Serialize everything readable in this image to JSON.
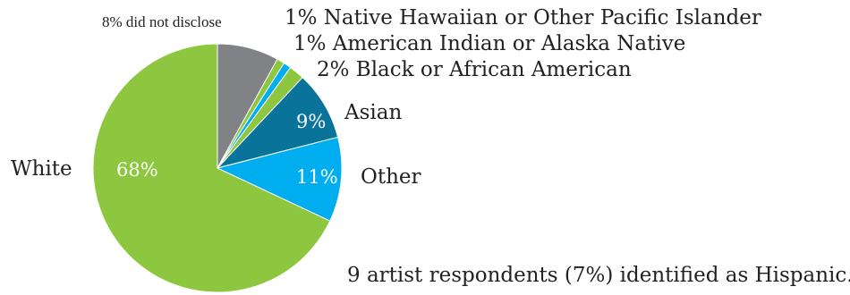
{
  "chart_data": {
    "type": "pie",
    "title": "",
    "slices": [
      {
        "label": "8% did not disclose",
        "value": 8,
        "color": "#808285"
      },
      {
        "label": "1% Native Hawaiian or Other Pacific Islander",
        "value": 1,
        "color": "#8dc63f"
      },
      {
        "label": "1% American Indian or Alaska Native",
        "value": 1,
        "color": "#00aeef"
      },
      {
        "label": "2% Black or African American",
        "value": 2,
        "color": "#8dc63f"
      },
      {
        "label": "Asian",
        "value": 9,
        "value_label": "9%",
        "color": "#0a7399"
      },
      {
        "label": "Other",
        "value": 11,
        "value_label": "11%",
        "color": "#00aeef"
      },
      {
        "label": "White",
        "value": 68,
        "value_label": "68%",
        "color": "#8dc63f"
      }
    ],
    "start_angle_deg": 0,
    "direction": "clockwise",
    "footnote": "9 artist respondents (7%) identified as Hispanic."
  }
}
